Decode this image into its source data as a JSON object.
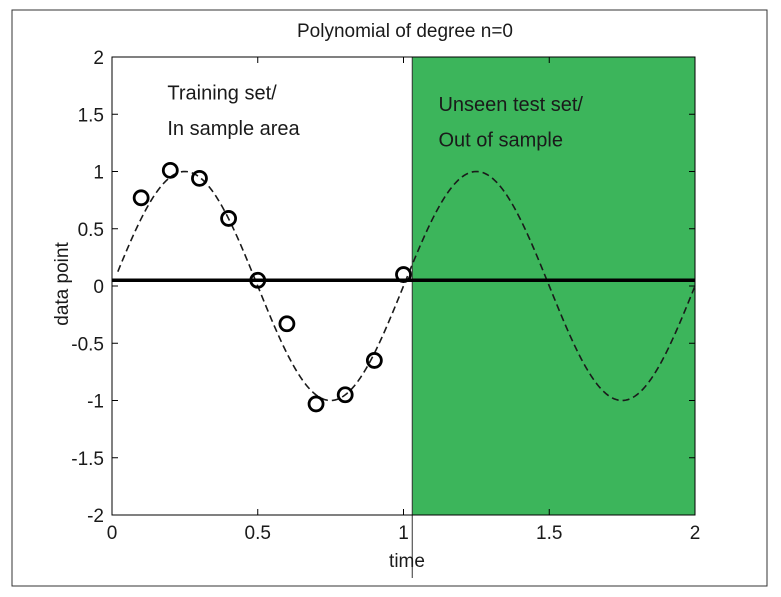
{
  "chart_data": {
    "type": "line",
    "title": "Polynomial of degree n=0",
    "xlabel": "time",
    "ylabel": "data point",
    "xlim": [
      0,
      2
    ],
    "ylim": [
      -2,
      2
    ],
    "x_ticks": [
      "0",
      "0.5",
      "1",
      "1.5",
      "2"
    ],
    "y_ticks": [
      "2",
      "1.5",
      "1",
      "0.5",
      "0",
      "-0.5",
      "-1",
      "-1.5",
      "-2"
    ],
    "grid": false,
    "shaded_region": {
      "x_start": 1.03,
      "x_end": 2,
      "color": "#3cb55b"
    },
    "annotations": [
      {
        "text": "Training set/",
        "x": 0.19,
        "y": 1.63
      },
      {
        "text": "In sample area",
        "x": 0.19,
        "y": 1.32
      },
      {
        "text": "Unseen test set/",
        "x": 1.12,
        "y": 1.53
      },
      {
        "text": "Out of sample",
        "x": 1.12,
        "y": 1.22
      }
    ],
    "series": [
      {
        "style": "dashed",
        "color": "#1a1a1a",
        "function": "sin(2*pi*x)",
        "x_range": [
          0.02,
          2
        ]
      },
      {
        "style": "solid",
        "color": "#000000",
        "x": [
          0,
          2
        ],
        "y": [
          0.05,
          0.05
        ]
      },
      {
        "style": "markers",
        "marker": "circle",
        "color": "#000000",
        "x": [
          0.1,
          0.2,
          0.3,
          0.4,
          0.5,
          0.6,
          0.7,
          0.8,
          0.9,
          1.0
        ],
        "y": [
          0.77,
          1.01,
          0.94,
          0.59,
          0.05,
          -0.33,
          -1.03,
          -0.95,
          -0.65,
          0.1
        ]
      }
    ]
  }
}
